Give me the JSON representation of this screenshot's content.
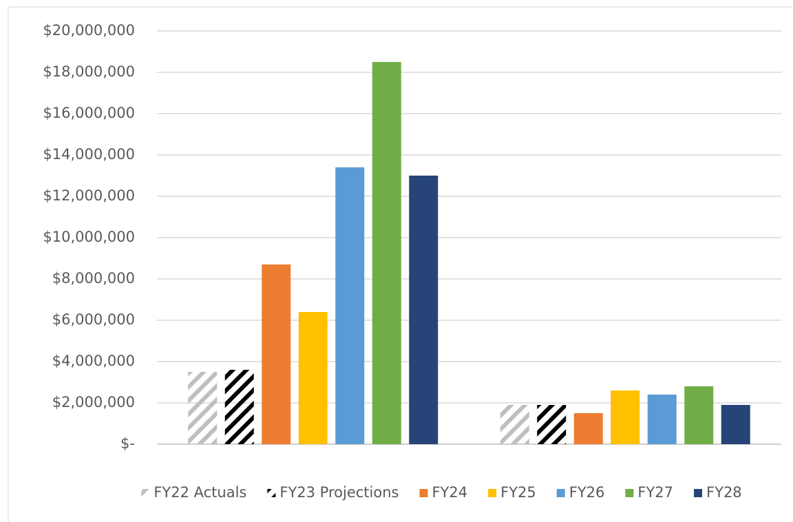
{
  "chart_data": {
    "type": "bar",
    "categories": [
      null,
      null
    ],
    "series": [
      {
        "name": "FY22 Actuals",
        "color": "#bfbfbf",
        "pattern": "diagonal",
        "values": [
          3500000,
          1900000
        ]
      },
      {
        "name": "FY23 Projections",
        "color": "#000000",
        "pattern": "diagonal",
        "values": [
          3600000,
          1900000
        ]
      },
      {
        "name": "FY24",
        "color": "#ed7d31",
        "values": [
          8700000,
          1500000
        ]
      },
      {
        "name": "FY25",
        "color": "#ffc000",
        "values": [
          6400000,
          2600000
        ]
      },
      {
        "name": "FY26",
        "color": "#5b9bd5",
        "values": [
          13400000,
          2400000
        ]
      },
      {
        "name": "FY27",
        "color": "#70ad47",
        "values": [
          18500000,
          2800000
        ]
      },
      {
        "name": "FY28",
        "color": "#264478",
        "values": [
          13000000,
          1900000
        ]
      }
    ],
    "ylim": [
      0,
      20000000
    ],
    "yticks": [
      {
        "value": 0,
        "label": "$-"
      },
      {
        "value": 2000000,
        "label": "$2,000,000"
      },
      {
        "value": 4000000,
        "label": "$4,000,000"
      },
      {
        "value": 6000000,
        "label": "$6,000,000"
      },
      {
        "value": 8000000,
        "label": "$8,000,000"
      },
      {
        "value": 10000000,
        "label": "$10,000,000"
      },
      {
        "value": 12000000,
        "label": "$12,000,000"
      },
      {
        "value": 14000000,
        "label": "$14,000,000"
      },
      {
        "value": 16000000,
        "label": "$16,000,000"
      },
      {
        "value": 18000000,
        "label": "$18,000,000"
      },
      {
        "value": 20000000,
        "label": "$20,000,000"
      }
    ],
    "grid": true,
    "legend": "bottom"
  }
}
